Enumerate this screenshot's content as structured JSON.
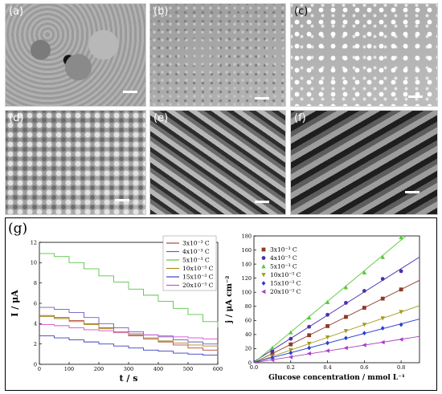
{
  "panels": [
    {
      "id": "a",
      "label": "(a)"
    },
    {
      "id": "b",
      "label": "(b)"
    },
    {
      "id": "c",
      "label": "(c)"
    },
    {
      "id": "d",
      "label": "(d)"
    },
    {
      "id": "e",
      "label": "(e)"
    },
    {
      "id": "f",
      "label": "(f)"
    }
  ],
  "panel_g_label": "(g)",
  "chart_data": [
    {
      "type": "line",
      "xlabel": "t / s",
      "ylabel": "I / μA",
      "xlim": [
        0,
        600
      ],
      "ylim": [
        0,
        12
      ],
      "xticks": [
        "0",
        "100",
        "200",
        "300",
        "400",
        "500",
        "600"
      ],
      "yticks": [
        "0",
        "2",
        "4",
        "6",
        "8",
        "10",
        "12"
      ],
      "grid": false,
      "legend_position": "top-right",
      "series": [
        {
          "name": "3x10⁻³ C",
          "color": "#b5433c",
          "x": [
            0,
            50,
            100,
            150,
            200,
            250,
            300,
            350,
            400,
            450,
            500,
            550,
            600
          ],
          "y": [
            4.8,
            4.6,
            4.3,
            4.0,
            3.6,
            3.2,
            2.8,
            2.5,
            2.2,
            1.9,
            1.6,
            1.4,
            1.3
          ]
        },
        {
          "name": "4x10⁻³ C",
          "color": "#6b5bc8",
          "x": [
            0,
            50,
            100,
            150,
            200,
            250,
            300,
            350,
            400,
            450,
            500,
            550,
            600
          ],
          "y": [
            5.6,
            5.4,
            5.1,
            4.6,
            4.0,
            3.6,
            3.2,
            2.9,
            2.7,
            2.4,
            2.2,
            2.0,
            1.9
          ]
        },
        {
          "name": "5x10⁻³ C",
          "color": "#5bc44a",
          "x": [
            0,
            50,
            100,
            150,
            200,
            250,
            300,
            350,
            400,
            450,
            500,
            550,
            600
          ],
          "y": [
            10.9,
            10.6,
            10.0,
            9.4,
            8.7,
            8.1,
            7.4,
            6.8,
            6.2,
            5.5,
            4.9,
            4.2,
            3.6
          ]
        },
        {
          "name": "10x10⁻³ C",
          "color": "#a5901f",
          "x": [
            0,
            50,
            100,
            150,
            200,
            250,
            300,
            350,
            400,
            450,
            500,
            550,
            600
          ],
          "y": [
            4.7,
            4.5,
            4.2,
            3.9,
            3.5,
            3.2,
            2.9,
            2.6,
            2.3,
            2.1,
            1.9,
            1.8,
            1.7
          ]
        },
        {
          "name": "15x10⁻³ C",
          "color": "#3f3fbf",
          "x": [
            0,
            50,
            100,
            150,
            200,
            250,
            300,
            350,
            400,
            450,
            500,
            550,
            600
          ],
          "y": [
            2.8,
            2.6,
            2.4,
            2.2,
            2.0,
            1.8,
            1.6,
            1.4,
            1.3,
            1.1,
            1.0,
            0.9,
            0.8
          ]
        },
        {
          "name": "20x10⁻³ C",
          "color": "#d34fc9",
          "x": [
            0,
            50,
            100,
            150,
            200,
            250,
            300,
            350,
            400,
            450,
            500,
            550,
            600
          ],
          "y": [
            3.9,
            3.8,
            3.6,
            3.4,
            3.3,
            3.1,
            3.0,
            2.9,
            2.8,
            2.7,
            2.6,
            2.5,
            2.5
          ]
        }
      ]
    },
    {
      "type": "scatter",
      "xlabel": "Glucose concentration / mmol L⁻¹",
      "ylabel": "j / μA cm⁻²",
      "xlim": [
        0,
        0.9
      ],
      "ylim": [
        0,
        180
      ],
      "xticks": [
        "0.0",
        "0.2",
        "0.4",
        "0.6",
        "0.8"
      ],
      "yticks": [
        "0",
        "20",
        "40",
        "60",
        "80",
        "100",
        "120",
        "140",
        "160",
        "180"
      ],
      "grid": false,
      "legend_position": "top-left",
      "series": [
        {
          "name": "3x10⁻³ C",
          "color": "#8b3b2c",
          "marker": "square",
          "x": [
            0.1,
            0.2,
            0.3,
            0.4,
            0.5,
            0.6,
            0.7,
            0.8
          ],
          "y": [
            13,
            26,
            39,
            52,
            65,
            78,
            91,
            104
          ]
        },
        {
          "name": "4x10⁻³ C",
          "color": "#4a2fb0",
          "marker": "circle",
          "x": [
            0.1,
            0.2,
            0.3,
            0.4,
            0.5,
            0.6,
            0.7,
            0.8
          ],
          "y": [
            17,
            34,
            51,
            68,
            85,
            102,
            119,
            130
          ]
        },
        {
          "name": "5x10⁻³ C",
          "color": "#58c83a",
          "marker": "triangle-up",
          "x": [
            0.1,
            0.2,
            0.3,
            0.4,
            0.5,
            0.6,
            0.7,
            0.8
          ],
          "y": [
            21,
            43,
            64,
            86,
            107,
            128,
            150,
            178
          ]
        },
        {
          "name": "10x10⁻³ C",
          "color": "#a59a20",
          "marker": "triangle-down",
          "x": [
            0.1,
            0.2,
            0.3,
            0.4,
            0.5,
            0.6,
            0.7,
            0.8
          ],
          "y": [
            9,
            18,
            27,
            36,
            45,
            54,
            63,
            72
          ]
        },
        {
          "name": "15x10⁻³ C",
          "color": "#2a3fcf",
          "marker": "diamond",
          "x": [
            0.1,
            0.2,
            0.3,
            0.4,
            0.5,
            0.6,
            0.7,
            0.8
          ],
          "y": [
            7,
            14,
            21,
            28,
            35,
            42,
            49,
            54
          ]
        },
        {
          "name": "20x10⁻³ C",
          "color": "#a742c4",
          "marker": "triangle-left",
          "x": [
            0.1,
            0.2,
            0.3,
            0.4,
            0.5,
            0.6,
            0.7,
            0.8
          ],
          "y": [
            4,
            8,
            13,
            17,
            21,
            25,
            29,
            33
          ]
        }
      ]
    }
  ]
}
